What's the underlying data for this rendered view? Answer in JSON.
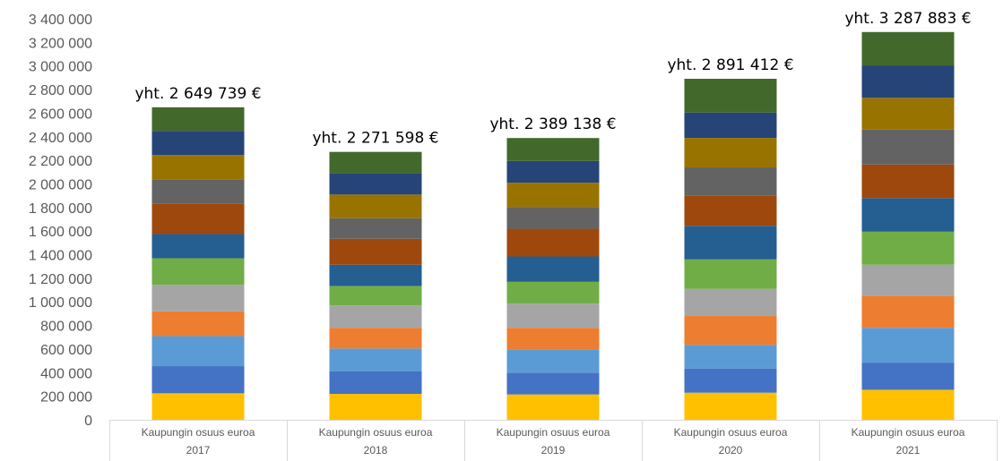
{
  "chart_data": {
    "type": "bar",
    "stacked": true,
    "title": "",
    "xlabel": "",
    "ylabel": "",
    "ylim": [
      0,
      3400000
    ],
    "y_ticks": [
      "0",
      "200 000",
      "400 000",
      "600 000",
      "800 000",
      "1 000 000",
      "1 200 000",
      "1 400 000",
      "1 600 000",
      "1 800 000",
      "2 000 000",
      "2 200 000",
      "2 400 000",
      "2 600 000",
      "2 800 000",
      "3 000 000",
      "3 200 000",
      "3 400 000"
    ],
    "grid": false,
    "legend": "none",
    "categories": [
      {
        "line1": "Kaupungin osuus euroa",
        "line2": "2017"
      },
      {
        "line1": "Kaupungin osuus euroa",
        "line2": "2018"
      },
      {
        "line1": "Kaupungin osuus euroa",
        "line2": "2019"
      },
      {
        "line1": "Kaupungin osuus euroa",
        "line2": "2020"
      },
      {
        "line1": "Kaupungin osuus euroa",
        "line2": "2021"
      }
    ],
    "totals": [
      "yht. 2 649 739 €",
      "yht. 2 271 598 €",
      "yht.  2 389 138 €",
      "yht. 2 891 412 €",
      "yht. 3 287 883 €"
    ],
    "series": [
      {
        "color": "#FFC000",
        "values": [
          225000,
          220000,
          215000,
          230000,
          255000
        ]
      },
      {
        "color": "#4472C4",
        "values": [
          230000,
          190000,
          185000,
          205000,
          230000
        ]
      },
      {
        "color": "#5B9BD5",
        "values": [
          255000,
          195000,
          195000,
          200000,
          295000
        ]
      },
      {
        "color": "#ED7D31",
        "values": [
          210000,
          175000,
          185000,
          245000,
          270000
        ]
      },
      {
        "color": "#A5A5A5",
        "values": [
          225000,
          190000,
          205000,
          230000,
          265000
        ]
      },
      {
        "color": "#70AD47",
        "values": [
          225000,
          165000,
          185000,
          250000,
          280000
        ]
      },
      {
        "color": "#255E91",
        "values": [
          205000,
          180000,
          215000,
          285000,
          285000
        ]
      },
      {
        "color": "#9E480E",
        "values": [
          260000,
          220000,
          235000,
          255000,
          285000
        ]
      },
      {
        "color": "#636363",
        "values": [
          205000,
          175000,
          185000,
          240000,
          295000
        ]
      },
      {
        "color": "#997300",
        "values": [
          205000,
          200000,
          205000,
          250000,
          270000
        ]
      },
      {
        "color": "#264478",
        "values": [
          205000,
          180000,
          185000,
          215000,
          275000
        ]
      },
      {
        "color": "#43682B",
        "values": [
          199739,
          181598,
          194138,
          286412,
          282883
        ]
      }
    ]
  }
}
